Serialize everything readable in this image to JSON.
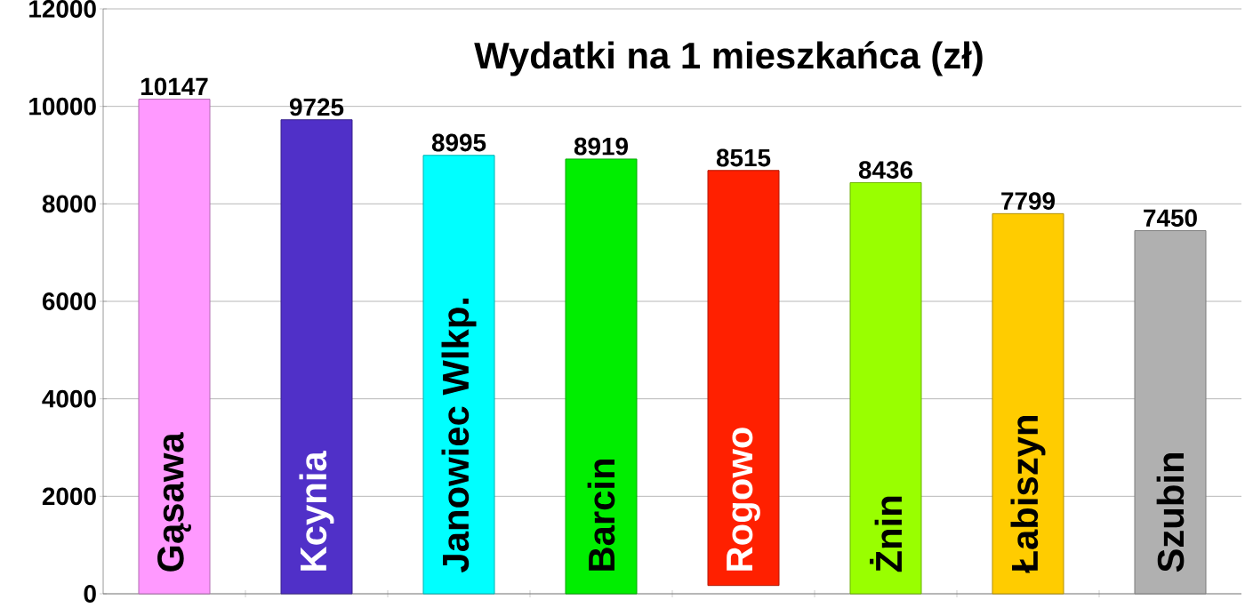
{
  "chart_data": {
    "type": "bar",
    "title": "Wydatki na 1 mieszkańca (zł)",
    "categories": [
      "Gąsawa",
      "Kcynia",
      "Janowiec Wlkp.",
      "Barcin",
      "Rogowo",
      "Żnin",
      "Łabiszyn",
      "Szubin"
    ],
    "values": [
      10147,
      9725,
      8995,
      8919,
      8515,
      8436,
      7799,
      7450
    ],
    "base": [
      0,
      0,
      0,
      0,
      170,
      0,
      0,
      0
    ],
    "colors": [
      "#ff99ff",
      "#5030c8",
      "#00ffff",
      "#00ee00",
      "#ff2000",
      "#99ff00",
      "#ffcc00",
      "#b0b0b0"
    ],
    "data_labels": true,
    "ylim": [
      0,
      12000
    ],
    "yticks": [
      0,
      2000,
      4000,
      6000,
      8000,
      10000,
      12000
    ],
    "grid": "y"
  }
}
